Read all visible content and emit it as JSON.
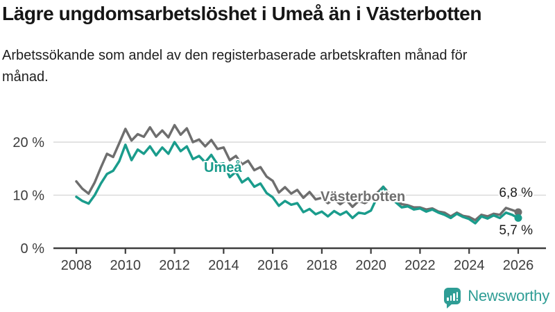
{
  "header": {
    "title": "Lägre ungdomsarbetslöshet i Umeå än i Västerbotten",
    "subtitle": "Arbetssökande som andel av den registerbaserade arbetskraften månad för månad."
  },
  "chart_data": {
    "type": "line",
    "unit": "%",
    "title": "Lägre ungdomsarbetslöshet i Umeå än i Västerbotten",
    "xlabel": "",
    "ylabel": "",
    "x_start": 2008,
    "x_end": 2026,
    "x_step": 0.25,
    "x_ticks": [
      2008,
      2010,
      2012,
      2014,
      2016,
      2018,
      2020,
      2022,
      2024,
      2026
    ],
    "y_ticks": [
      {
        "value": 0,
        "label": "0 %"
      },
      {
        "value": 10,
        "label": "10 %"
      },
      {
        "value": 20,
        "label": "20 %"
      }
    ],
    "ylim": [
      0,
      24
    ],
    "grid": "horizontal",
    "legend": "inline-labels",
    "series": [
      {
        "name": "Västerbotten",
        "color": "#6e6e6e",
        "end_label": "6,8 %",
        "end_value": 6.8,
        "values": [
          12.6,
          11.2,
          10.3,
          12.4,
          15.2,
          17.8,
          17.2,
          19.8,
          22.5,
          20.3,
          21.5,
          21.0,
          22.8,
          21.0,
          22.2,
          20.9,
          23.2,
          21.4,
          22.6,
          20.0,
          20.5,
          19.2,
          20.4,
          18.7,
          19.0,
          16.6,
          17.4,
          15.8,
          16.5,
          14.7,
          15.3,
          13.5,
          12.7,
          10.5,
          11.5,
          10.3,
          11.0,
          9.5,
          10.6,
          9.2,
          9.5,
          8.5,
          9.3,
          8.3,
          9.1,
          7.8,
          8.9,
          8.5,
          9.2,
          10.4,
          11.6,
          10.3,
          9.3,
          8.3,
          8.1,
          7.7,
          7.7,
          7.3,
          7.5,
          6.9,
          6.7,
          6.0,
          6.7,
          6.1,
          5.9,
          5.3,
          6.3,
          6.0,
          6.5,
          6.3,
          7.6,
          7.2,
          6.8
        ]
      },
      {
        "name": "Umeå",
        "color": "#1a9c8c",
        "end_label": "5,7 %",
        "end_value": 5.7,
        "values": [
          9.7,
          8.9,
          8.4,
          10.0,
          12.2,
          14.0,
          14.6,
          16.4,
          19.5,
          16.6,
          18.6,
          17.8,
          19.2,
          17.5,
          19.0,
          17.8,
          20.0,
          18.3,
          19.2,
          16.8,
          17.4,
          16.2,
          17.6,
          15.8,
          16.0,
          13.4,
          14.4,
          12.4,
          13.2,
          11.6,
          12.2,
          10.4,
          9.6,
          8.0,
          8.9,
          8.2,
          8.5,
          6.8,
          7.4,
          6.4,
          6.9,
          6.0,
          7.0,
          6.3,
          6.9,
          5.7,
          6.7,
          6.5,
          7.1,
          9.6,
          11.6,
          9.8,
          8.7,
          7.7,
          7.9,
          7.3,
          7.5,
          6.9,
          7.3,
          6.7,
          6.3,
          5.7,
          6.5,
          5.9,
          5.5,
          4.7,
          6.0,
          5.6,
          6.2,
          5.7,
          6.7,
          6.3,
          5.7
        ]
      }
    ]
  },
  "branding": {
    "name": "Newsworthy",
    "color": "#2e9d95"
  }
}
